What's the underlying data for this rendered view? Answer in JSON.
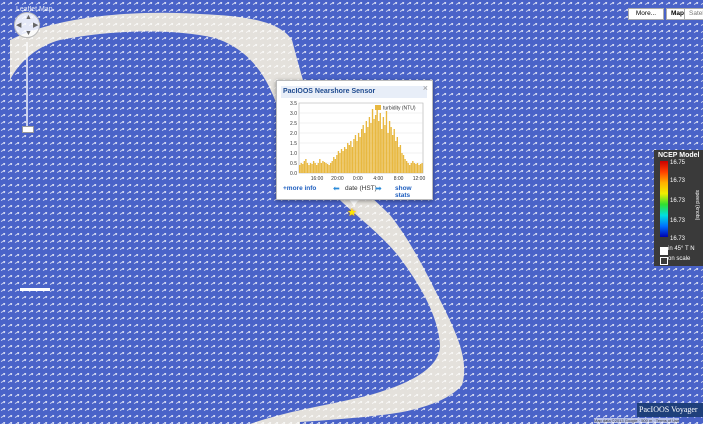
{
  "map": {
    "title": "Leaflet Map",
    "colors": {
      "ocean": "#4a63c8",
      "land": "#e4e1dc",
      "arrow": "#ffffff"
    },
    "buttons": [
      {
        "label": "More...",
        "id": "more"
      },
      {
        "label": "Map",
        "id": "map"
      },
      {
        "label": "Satellite",
        "id": "satellite"
      }
    ],
    "attribution": "Map data ©2013 Google · 500 m · Terms of Use",
    "marker_icon": "star-icon"
  },
  "popup": {
    "title": "PacIOOS Nearshore Sensor",
    "close_label": "×",
    "links": {
      "more_info": "+more info",
      "date_label": "date (HST)",
      "show_stats": "show stats"
    }
  },
  "chart_data": {
    "type": "bar",
    "title": "",
    "legend": [
      "turbidity (NTU)"
    ],
    "legend_placement": "top-right",
    "ylim": [
      0,
      3.5
    ],
    "yticks": [
      "0.0",
      "0.5",
      "1.0",
      "1.5",
      "2.0",
      "2.5",
      "3.0",
      "3.5"
    ],
    "xticks": [
      "16:00",
      "20:00",
      "0:00",
      "4:00",
      "8:00",
      "12:00"
    ],
    "series": [
      {
        "name": "turbidity (NTU)",
        "color": "#e8b840",
        "values": [
          0.4,
          0.5,
          0.45,
          0.6,
          0.7,
          0.5,
          0.4,
          0.5,
          0.45,
          0.6,
          0.5,
          0.4,
          0.5,
          0.7,
          0.5,
          0.6,
          0.55,
          0.5,
          0.45,
          0.4,
          0.5,
          0.6,
          0.8,
          0.7,
          0.9,
          1.1,
          1.0,
          1.2,
          1.1,
          1.3,
          1.2,
          1.5,
          1.4,
          1.6,
          1.3,
          1.7,
          1.9,
          1.6,
          2.0,
          1.8,
          2.2,
          2.4,
          2.0,
          2.6,
          2.3,
          2.8,
          2.5,
          3.2,
          2.7,
          2.9,
          3.4,
          2.6,
          3.0,
          2.2,
          2.8,
          2.4,
          3.1,
          2.0,
          2.6,
          2.3,
          1.9,
          2.2,
          1.6,
          1.8,
          1.3,
          1.4,
          1.0,
          0.9,
          0.7,
          0.6,
          0.5,
          0.4,
          0.5,
          0.6,
          0.5,
          0.45,
          0.5,
          0.4,
          0.45,
          0.5
        ]
      }
    ]
  },
  "legend": {
    "title": "NCEP Model",
    "units": "speed (knots)",
    "values": [
      "16.75",
      "16.73",
      "16.73",
      "16.73",
      "16.73"
    ],
    "options": [
      {
        "label": "in 45° T N",
        "checked": true
      },
      {
        "label": "on scale",
        "checked": false
      }
    ]
  },
  "logo": {
    "text": "PacIOOS Voyager"
  }
}
